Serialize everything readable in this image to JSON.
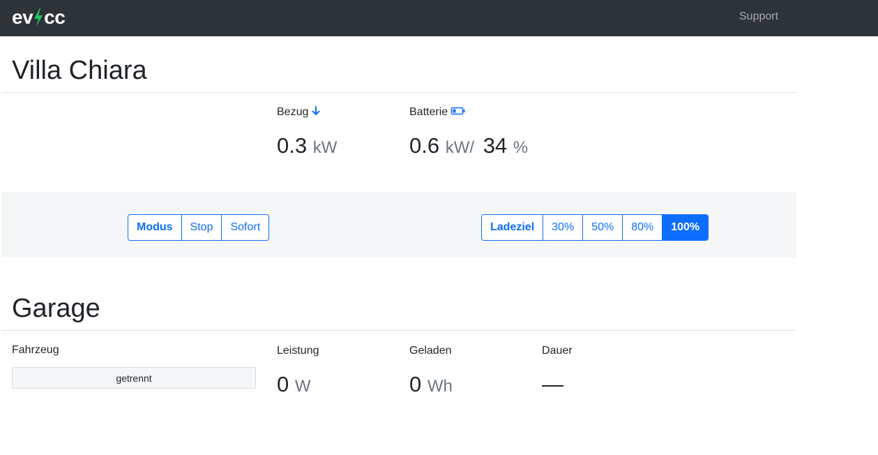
{
  "navbar": {
    "brand_left": "ev",
    "brand_right": "cc",
    "brand_icon": "lightning-bolt-icon",
    "brand_icon_color": "#22c55e",
    "support_label": "Support"
  },
  "site": {
    "title": "Villa Chiara",
    "grid": {
      "label": "Bezug",
      "icon": "arrow-down-icon",
      "value": "0.3",
      "unit": "kW"
    },
    "battery": {
      "label": "Batterie",
      "icon": "battery-icon",
      "power_value": "0.6",
      "power_unit": "kW",
      "separator": "/",
      "soc_value": "34",
      "soc_unit": "%"
    }
  },
  "controls": {
    "mode": {
      "label": "Modus",
      "options": [
        "Stop",
        "Sofort"
      ]
    },
    "target": {
      "label": "Ladeziel",
      "options": [
        "30%",
        "50%",
        "80%",
        "100%"
      ],
      "selected": "100%"
    }
  },
  "loadpoint": {
    "title": "Garage",
    "vehicle_label": "Fahrzeug",
    "vehicle_status": "getrennt",
    "power": {
      "label": "Leistung",
      "value": "0",
      "unit": "W"
    },
    "charged": {
      "label": "Geladen",
      "value": "0",
      "unit": "Wh"
    },
    "duration": {
      "label": "Dauer",
      "value": "—"
    }
  },
  "colors": {
    "navbar_bg": "#2e3338",
    "accent": "#0d6efd",
    "panel_bg": "#f5f6f8"
  }
}
